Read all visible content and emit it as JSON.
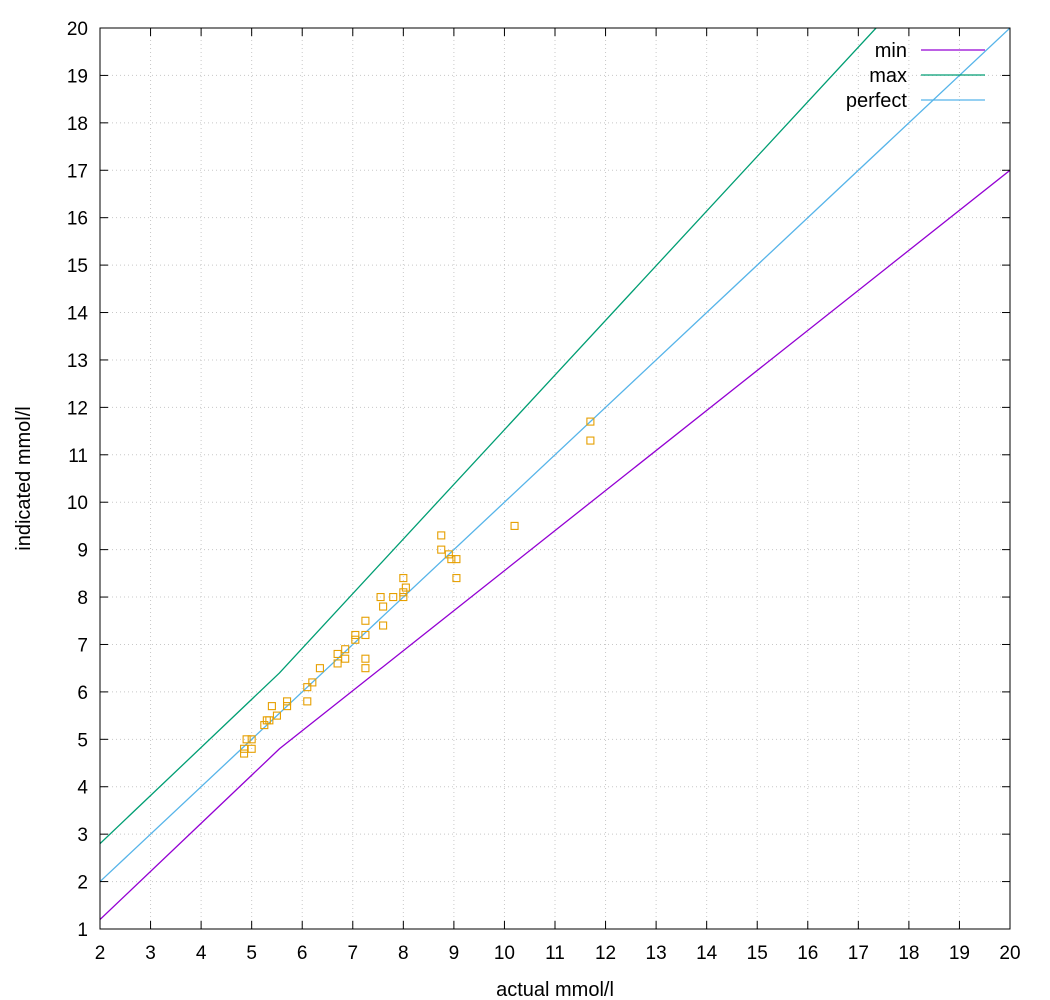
{
  "chart_data": {
    "type": "line",
    "title": "",
    "xlabel": "actual mmol/l",
    "ylabel": "indicated mmol/l",
    "xlim": [
      2,
      20
    ],
    "ylim": [
      1,
      20
    ],
    "x_ticks": [
      2,
      3,
      4,
      5,
      6,
      7,
      8,
      9,
      10,
      11,
      12,
      13,
      14,
      15,
      16,
      17,
      18,
      19,
      20
    ],
    "y_ticks": [
      1,
      2,
      3,
      4,
      5,
      6,
      7,
      8,
      9,
      10,
      11,
      12,
      13,
      14,
      15,
      16,
      17,
      18,
      19,
      20
    ],
    "grid": true,
    "legend_position": "top-right",
    "series": [
      {
        "name": "min",
        "style": "line",
        "color": "#9400d3",
        "points": [
          [
            2,
            1.2
          ],
          [
            5.55,
            4.8
          ],
          [
            20,
            17.0
          ]
        ]
      },
      {
        "name": "max",
        "style": "line",
        "color": "#009e73",
        "points": [
          [
            2,
            2.8
          ],
          [
            5.55,
            6.4
          ],
          [
            17.35,
            20.0
          ]
        ]
      },
      {
        "name": "perfect",
        "style": "line",
        "color": "#56b4e9",
        "points": [
          [
            2,
            2
          ],
          [
            20,
            20
          ]
        ]
      },
      {
        "name": "",
        "style": "points",
        "color": "#e69f00",
        "points": [
          [
            4.85,
            4.7
          ],
          [
            4.85,
            4.8
          ],
          [
            4.9,
            5.0
          ],
          [
            5.0,
            4.8
          ],
          [
            5.0,
            5.0
          ],
          [
            5.25,
            5.3
          ],
          [
            5.3,
            5.4
          ],
          [
            5.35,
            5.4
          ],
          [
            5.4,
            5.7
          ],
          [
            5.5,
            5.5
          ],
          [
            5.7,
            5.7
          ],
          [
            5.7,
            5.8
          ],
          [
            6.1,
            5.8
          ],
          [
            6.1,
            6.1
          ],
          [
            6.2,
            6.2
          ],
          [
            6.35,
            6.5
          ],
          [
            6.7,
            6.6
          ],
          [
            6.7,
            6.8
          ],
          [
            6.85,
            6.7
          ],
          [
            6.85,
            6.9
          ],
          [
            7.05,
            7.1
          ],
          [
            7.05,
            7.2
          ],
          [
            7.25,
            7.2
          ],
          [
            7.25,
            7.5
          ],
          [
            7.25,
            6.7
          ],
          [
            7.25,
            6.5
          ],
          [
            7.55,
            8.0
          ],
          [
            7.6,
            7.8
          ],
          [
            7.6,
            7.4
          ],
          [
            7.8,
            8.0
          ],
          [
            8.0,
            8.0
          ],
          [
            8.0,
            8.1
          ],
          [
            8.0,
            8.4
          ],
          [
            8.05,
            8.2
          ],
          [
            8.75,
            9.3
          ],
          [
            8.75,
            9.0
          ],
          [
            8.9,
            8.9
          ],
          [
            8.95,
            8.8
          ],
          [
            9.05,
            8.8
          ],
          [
            9.05,
            8.4
          ],
          [
            10.2,
            9.5
          ],
          [
            11.7,
            11.7
          ],
          [
            11.7,
            11.3
          ]
        ]
      }
    ]
  }
}
